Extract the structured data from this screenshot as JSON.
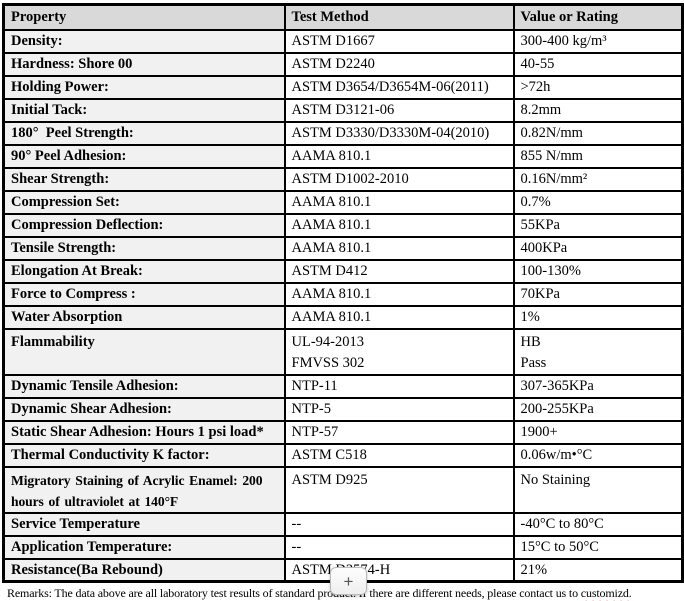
{
  "table": {
    "header": {
      "property": "Property",
      "test_method": "Test Method",
      "value": "Value or Rating"
    },
    "rows": [
      {
        "property": "Density:",
        "method": "ASTM D1667",
        "value": "300-400 kg/m³"
      },
      {
        "property": "Hardness: Shore 00",
        "method": "ASTM D2240",
        "value": "40-55"
      },
      {
        "property": "Holding Power:",
        "method": "ASTM D3654/D3654M-06(2011)",
        "value": ">72h"
      },
      {
        "property": "Initial Tack:",
        "method": "ASTM D3121-06",
        "value": "8.2mm"
      },
      {
        "property": "180°  Peel Strength:",
        "method": "ASTM D3330/D3330M-04(2010)",
        "value": "0.82N/mm"
      },
      {
        "property": "90° Peel Adhesion:",
        "method": "AAMA 810.1",
        "value": "855 N/mm"
      },
      {
        "property": "Shear Strength:",
        "method": "ASTM D1002-2010",
        "value": "0.16N/mm²"
      },
      {
        "property": "Compression Set:",
        "method": "AAMA 810.1",
        "value": "0.7%"
      },
      {
        "property": "Compression Deflection:",
        "method": "AAMA 810.1",
        "value": "55KPa"
      },
      {
        "property": "Tensile Strength:",
        "method": "AAMA 810.1",
        "value": "400KPa"
      },
      {
        "property": "Elongation At Break:",
        "method": "ASTM D412",
        "value": "100-130%"
      },
      {
        "property": "Force to Compress :",
        "method": "AAMA 810.1",
        "value": "70KPa"
      },
      {
        "property": "Water Absorption",
        "method": "AAMA 810.1",
        "value": "1%"
      },
      {
        "property": "Flammability",
        "method": "UL-94-2013\nFMVSS 302",
        "value": "HB\nPass"
      },
      {
        "property": "Dynamic Tensile Adhesion:",
        "method": "NTP-11",
        "value": "307-365KPa"
      },
      {
        "property": "Dynamic Shear Adhesion:",
        "method": "NTP-5",
        "value": "200-255KPa"
      },
      {
        "property": "Static Shear Adhesion: Hours 1 psi load*",
        "method": "NTP-57",
        "value": "1900+"
      },
      {
        "property": "Thermal Conductivity K factor:",
        "method": "ASTM C518",
        "value": "0.06w/m•°C"
      },
      {
        "property": "Migratory Staining of Acrylic Enamel: 200\nhours of ultraviolet at 140°F",
        "method": "ASTM D925",
        "value": "No Staining"
      },
      {
        "property": "Service Temperature",
        "method": "--",
        "value": "-40°C to 80°C"
      },
      {
        "property": "Application Temperature:",
        "method": "--",
        "value": "15°C to 50°C"
      },
      {
        "property": "Resistance(Ba Rebound)",
        "method": "ASTM D3574-H",
        "value": "21%"
      }
    ]
  },
  "footer": {
    "remarks_prefix": "Remarks: The data above are all laboratory test results of standard product. If there are different needs, please contact us to ",
    "remarks_misspelled": "customizd",
    "remarks_suffix": "."
  },
  "overlay": {
    "plus_button_label": "+"
  },
  "colors": {
    "header_bg": "#d9d9d9",
    "property_col_bg": "#f1f1f1",
    "border": "#000000",
    "spellcheck_underline": "#c00000"
  }
}
